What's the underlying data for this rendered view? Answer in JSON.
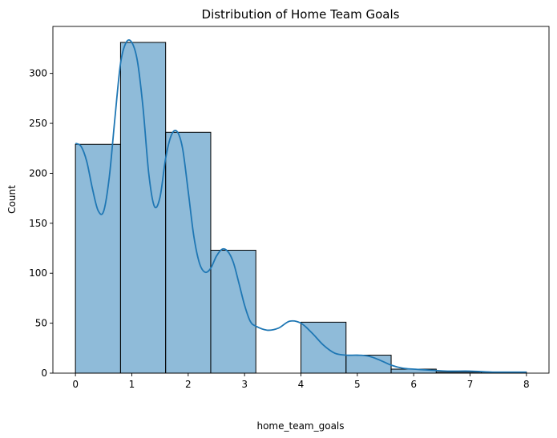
{
  "chart_data": {
    "type": "bar",
    "title": "Distribution of Home Team Goals",
    "xlabel": "home_team_goals",
    "ylabel": "Count",
    "bin_edges": [
      0,
      0.8,
      1.6,
      2.4,
      3.2,
      4.0,
      4.8,
      5.6,
      6.4,
      7.2,
      8.0
    ],
    "counts": [
      229,
      331,
      241,
      123,
      0,
      51,
      18,
      4,
      1,
      1
    ],
    "xlim": [
      -0.4,
      8.4
    ],
    "ylim": [
      0,
      347
    ],
    "xticks": [
      0,
      1,
      2,
      3,
      4,
      5,
      6,
      7,
      8
    ],
    "yticks": [
      0,
      50,
      100,
      150,
      200,
      250,
      300
    ],
    "kde": {
      "x": [
        0,
        0.1,
        0.2,
        0.3,
        0.4,
        0.5,
        0.6,
        0.7,
        0.8,
        0.9,
        1.0,
        1.1,
        1.2,
        1.3,
        1.4,
        1.5,
        1.6,
        1.7,
        1.8,
        1.9,
        2.0,
        2.1,
        2.2,
        2.3,
        2.4,
        2.5,
        2.6,
        2.7,
        2.8,
        2.9,
        3.0,
        3.1,
        3.2,
        3.4,
        3.6,
        3.8,
        4.0,
        4.2,
        4.4,
        4.6,
        4.8,
        5.0,
        5.2,
        5.4,
        5.6,
        5.8,
        6.0,
        6.3,
        6.6,
        7.0,
        7.4,
        7.7,
        8.0
      ],
      "y": [
        230,
        227,
        212,
        185,
        163,
        162,
        196,
        255,
        310,
        331,
        331,
        312,
        265,
        200,
        167,
        176,
        215,
        238,
        242,
        225,
        182,
        137,
        110,
        101,
        105,
        117,
        124,
        122,
        111,
        90,
        68,
        52,
        47,
        43,
        45,
        52,
        50,
        40,
        28,
        20,
        18,
        18,
        17,
        13,
        8,
        5,
        4,
        3,
        2,
        2,
        1,
        1,
        1
      ]
    }
  }
}
